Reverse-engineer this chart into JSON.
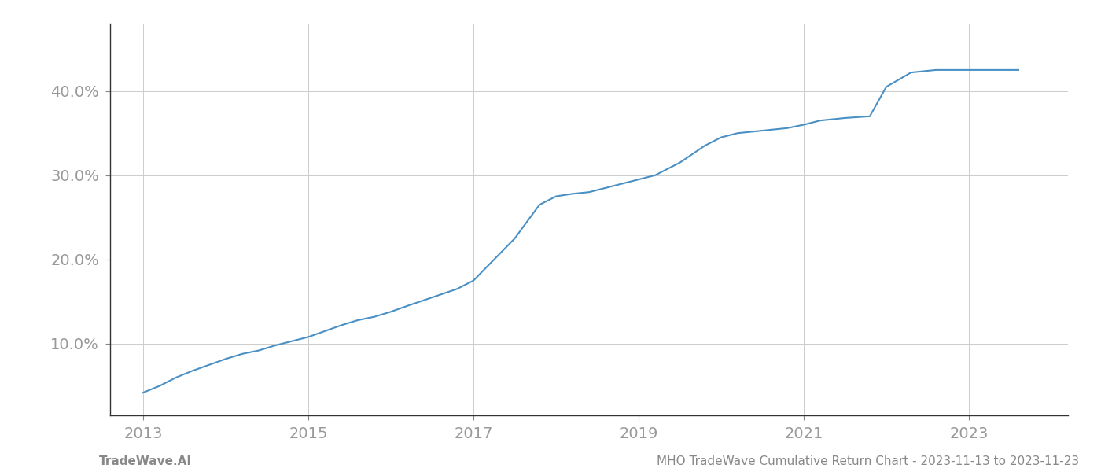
{
  "x_values": [
    2013.0,
    2013.2,
    2013.4,
    2013.6,
    2013.8,
    2014.0,
    2014.2,
    2014.4,
    2014.6,
    2014.8,
    2015.0,
    2015.2,
    2015.4,
    2015.6,
    2015.8,
    2016.0,
    2016.2,
    2016.5,
    2016.8,
    2017.0,
    2017.2,
    2017.5,
    2017.8,
    2018.0,
    2018.2,
    2018.4,
    2018.6,
    2018.8,
    2019.0,
    2019.2,
    2019.5,
    2019.8,
    2020.0,
    2020.2,
    2020.5,
    2020.8,
    2021.0,
    2021.2,
    2021.5,
    2021.8,
    2022.0,
    2022.3,
    2022.6,
    2023.0,
    2023.3,
    2023.6
  ],
  "y_values": [
    4.2,
    5.0,
    6.0,
    6.8,
    7.5,
    8.2,
    8.8,
    9.2,
    9.8,
    10.3,
    10.8,
    11.5,
    12.2,
    12.8,
    13.2,
    13.8,
    14.5,
    15.5,
    16.5,
    17.5,
    19.5,
    22.5,
    26.5,
    27.5,
    27.8,
    28.0,
    28.5,
    29.0,
    29.5,
    30.0,
    31.5,
    33.5,
    34.5,
    35.0,
    35.3,
    35.6,
    36.0,
    36.5,
    36.8,
    37.0,
    40.5,
    42.2,
    42.5,
    42.5,
    42.5,
    42.5
  ],
  "line_color": "#4a90c4",
  "line_width": 1.5,
  "background_color": "#ffffff",
  "grid_color": "#cccccc",
  "yticks": [
    10.0,
    20.0,
    30.0,
    40.0
  ],
  "ytick_labels": [
    "10.0%",
    "20.0%",
    "30.0%",
    "40.0%"
  ],
  "xticks": [
    2013,
    2015,
    2017,
    2019,
    2021,
    2023
  ],
  "xlim": [
    2012.6,
    2024.2
  ],
  "ylim": [
    1.5,
    48.0
  ],
  "footer_left": "TradeWave.AI",
  "footer_right": "MHO TradeWave Cumulative Return Chart - 2023-11-13 to 2023-11-23",
  "tick_label_color": "#999999",
  "footer_color": "#888888",
  "footer_fontsize": 11,
  "ytick_fontsize": 14,
  "xtick_fontsize": 14
}
